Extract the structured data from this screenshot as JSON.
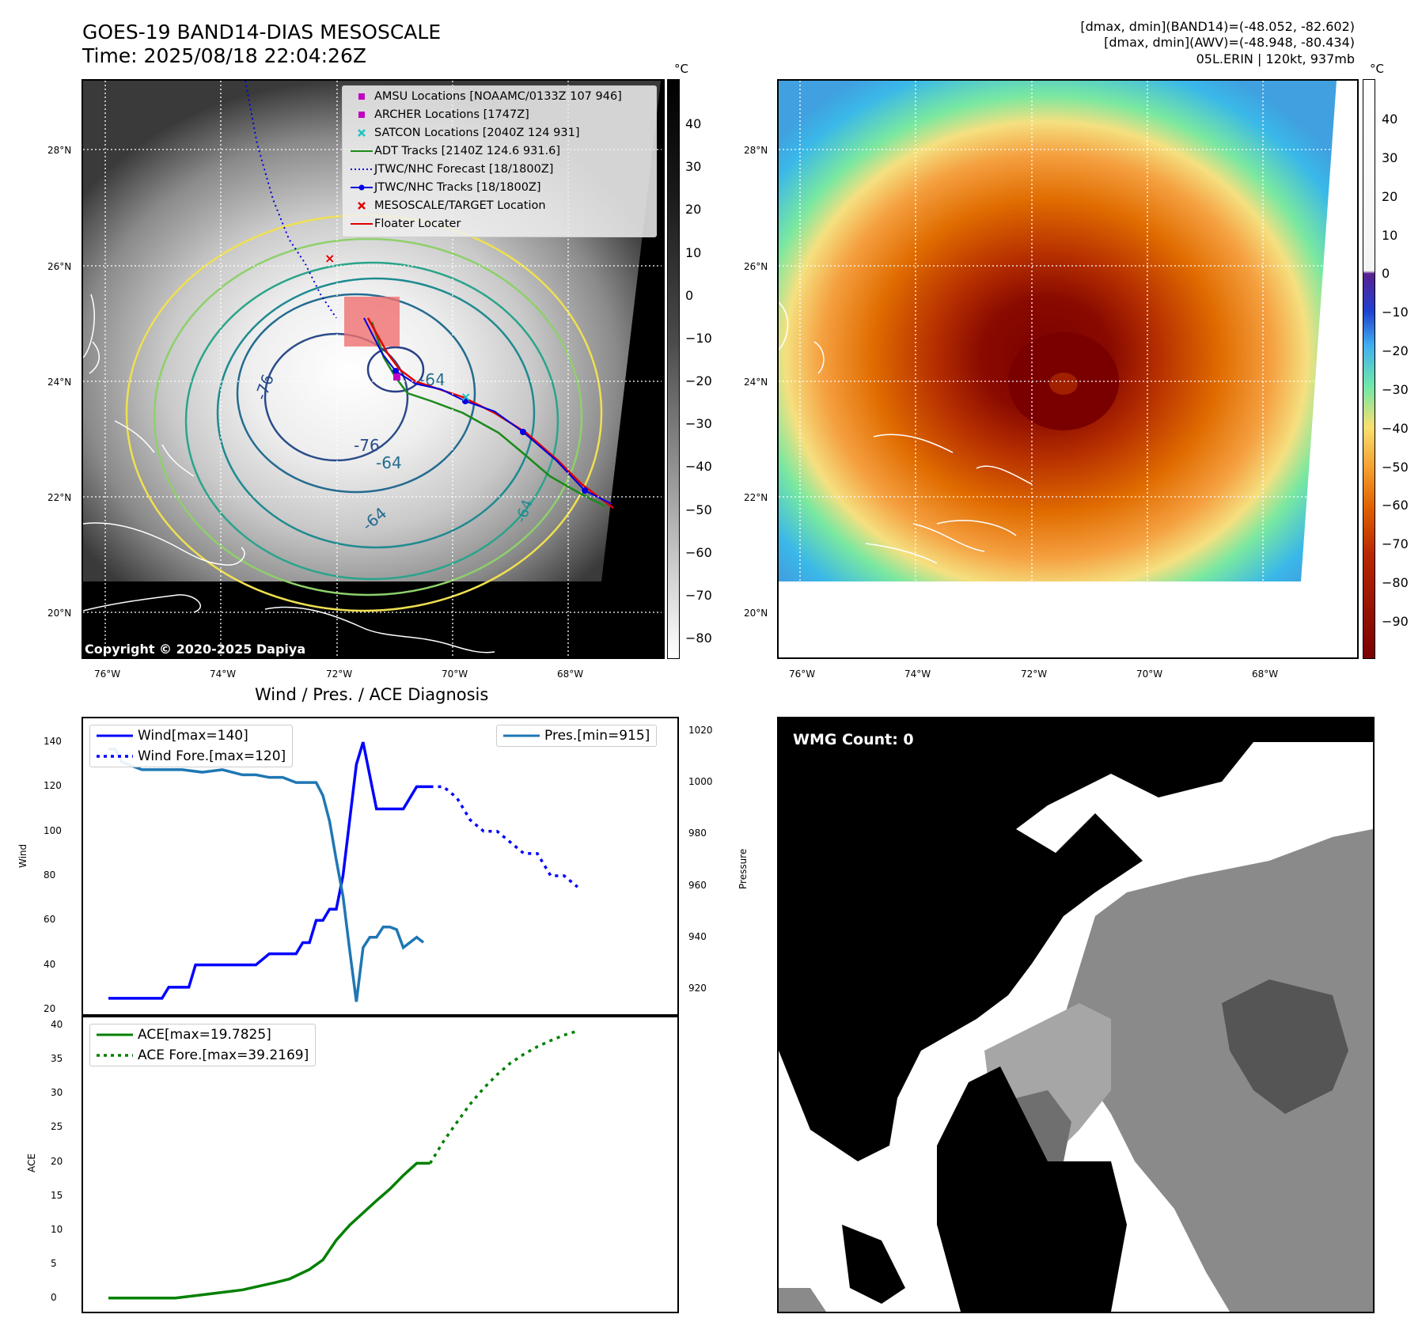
{
  "header": {
    "title_line1": "GOES-19 BAND14-DIAS MESOSCALE",
    "title_line2": "Time: 2025/08/18 22:04:26Z",
    "info_line1": "[dmax, dmin](BAND14)=(-48.052, -82.602)",
    "info_line2": "[dmax, dmin](AWV)=(-48.948, -80.434)",
    "info_line3": "05L.ERIN | 120kt, 937mb"
  },
  "map_panel": {
    "lat_labels": [
      "28°N",
      "26°N",
      "24°N",
      "22°N",
      "20°N"
    ],
    "lon_labels": [
      "76°W",
      "74°W",
      "72°W",
      "70°W",
      "68°W"
    ],
    "copyright": "Copyright © 2020-2025 Dapiya",
    "contour_labels": [
      "-76",
      "-64",
      "-76",
      "-64",
      "-64",
      "-64"
    ],
    "legend": [
      {
        "label": "AMSU Locations [NOAAMC/0133Z 107 946]",
        "color": "#c000c0",
        "marker": "square"
      },
      {
        "label": "ARCHER Locations [1747Z]",
        "color": "#c000c0",
        "marker": "square"
      },
      {
        "label": "SATCON Locations [2040Z 124 931]",
        "color": "#19c3c3",
        "marker": "x"
      },
      {
        "label": "ADT Tracks [2140Z 124.6 931.6]",
        "color": "#1a8a1a",
        "marker": "line"
      },
      {
        "label": "JTWC/NHC Forecast [18/1800Z]",
        "color": "#0000e0",
        "marker": "dotted"
      },
      {
        "label": "JTWC/NHC Tracks [18/1800Z]",
        "color": "#0000e0",
        "marker": "line-dot"
      },
      {
        "label": "MESOSCALE/TARGET Location",
        "color": "#e00000",
        "marker": "x"
      },
      {
        "label": "Floater Locater",
        "color": "#e00000",
        "marker": "line"
      }
    ]
  },
  "colorbar_left": {
    "unit": "°C",
    "ticks": [
      "40",
      "30",
      "20",
      "10",
      "0",
      "−10",
      "−20",
      "−30",
      "−40",
      "−50",
      "−60",
      "−70",
      "−80"
    ]
  },
  "colorbar_right": {
    "unit": "°C",
    "ticks": [
      "40",
      "30",
      "20",
      "10",
      "0",
      "−10",
      "−20",
      "−30",
      "−40",
      "−50",
      "−60",
      "−70",
      "−80",
      "−90"
    ]
  },
  "wmg_panel": {
    "label": "WMG Count: 0"
  },
  "chart_data": [
    {
      "type": "line",
      "title": "Wind / Pres. / ACE Diagnosis",
      "ylabel": "Wind",
      "ylabel_right": "Pressure",
      "ylim": [
        20,
        145
      ],
      "ylim_right": [
        912,
        1020
      ],
      "yticks": [
        "140",
        "120",
        "100",
        "80",
        "60",
        "40",
        "20"
      ],
      "yticks_right": [
        "1020",
        "1000",
        "980",
        "960",
        "940",
        "920"
      ],
      "x": [
        0,
        1,
        2,
        3,
        4,
        5,
        6,
        7,
        8,
        9,
        10,
        11,
        12,
        13,
        14,
        15,
        16,
        17,
        18,
        19,
        20,
        21,
        22,
        23,
        24,
        25,
        26,
        27,
        28,
        29,
        30,
        31,
        32,
        33,
        34,
        35,
        36,
        37,
        38,
        39,
        40,
        41,
        42,
        43,
        44,
        45,
        46,
        47,
        48,
        49,
        50,
        51,
        52,
        53,
        54,
        55,
        56,
        57,
        58,
        59,
        60,
        61,
        62,
        63,
        64,
        65,
        66,
        67,
        68,
        69,
        70,
        71,
        72,
        73,
        74,
        75,
        76,
        77,
        78,
        79,
        80,
        81
      ],
      "series": [
        {
          "name": "Wind[max=140]",
          "axis": "left",
          "style": "solid",
          "color": "#0000ff",
          "x": [
            0,
            3,
            6,
            8,
            9,
            10,
            12,
            13,
            16,
            18,
            20,
            22,
            24,
            26,
            28,
            29,
            30,
            31,
            32,
            33,
            34,
            35,
            37,
            38,
            40,
            42,
            44,
            46,
            48
          ],
          "values": [
            25,
            25,
            25,
            25,
            30,
            30,
            30,
            40,
            40,
            40,
            40,
            40,
            45,
            45,
            45,
            50,
            50,
            60,
            60,
            65,
            65,
            80,
            130,
            140,
            110,
            110,
            110,
            120,
            120
          ]
        },
        {
          "name": "Wind Fore.[max=120]",
          "axis": "left",
          "style": "dotted",
          "color": "#0000ff",
          "x": [
            48,
            50,
            52,
            54,
            56,
            58,
            60,
            62,
            64,
            66,
            68,
            70
          ],
          "values": [
            120,
            120,
            115,
            105,
            100,
            100,
            95,
            90,
            90,
            80,
            80,
            75
          ]
        },
        {
          "name": "Pres.[min=915]",
          "axis": "right",
          "style": "solid",
          "color": "#1f77b4",
          "x": [
            0,
            1,
            2,
            3,
            5,
            8,
            11,
            14,
            17,
            20,
            22,
            24,
            26,
            28,
            29,
            30,
            31,
            32,
            33,
            34,
            35,
            36,
            37,
            38,
            39,
            40,
            41,
            42,
            43,
            44,
            45,
            46,
            47
          ],
          "values": [
            1013,
            1013,
            1008,
            1007,
            1005,
            1005,
            1005,
            1004,
            1005,
            1003,
            1003,
            1002,
            1002,
            1000,
            1000,
            1000,
            1000,
            995,
            985,
            970,
            956,
            935,
            915,
            936,
            940,
            940,
            944,
            944,
            943,
            936,
            938,
            940,
            938
          ]
        }
      ]
    },
    {
      "type": "line",
      "ylabel": "ACE",
      "ylim": [
        -2,
        40.5
      ],
      "yticks": [
        "40",
        "35",
        "30",
        "25",
        "20",
        "15",
        "10",
        "5",
        "0"
      ],
      "series": [
        {
          "name": "ACE[max=19.7825]",
          "style": "solid",
          "color": "#008000",
          "x": [
            0,
            5,
            10,
            15,
            20,
            25,
            27,
            30,
            32,
            34,
            36,
            38,
            40,
            42,
            44,
            46,
            48
          ],
          "values": [
            0,
            0,
            0,
            0.6,
            1.2,
            2.3,
            2.8,
            4.2,
            5.6,
            8.5,
            10.7,
            12.5,
            14.3,
            16.0,
            18.0,
            19.78,
            19.78
          ]
        },
        {
          "name": "ACE Fore.[max=39.2169]",
          "style": "dotted",
          "color": "#008000",
          "x": [
            48,
            50,
            52,
            54,
            56,
            58,
            60,
            62,
            64,
            66,
            68,
            70
          ],
          "values": [
            19.78,
            23.0,
            25.8,
            28.5,
            30.8,
            32.8,
            34.5,
            35.8,
            36.9,
            37.8,
            38.6,
            39.2
          ]
        }
      ]
    }
  ]
}
